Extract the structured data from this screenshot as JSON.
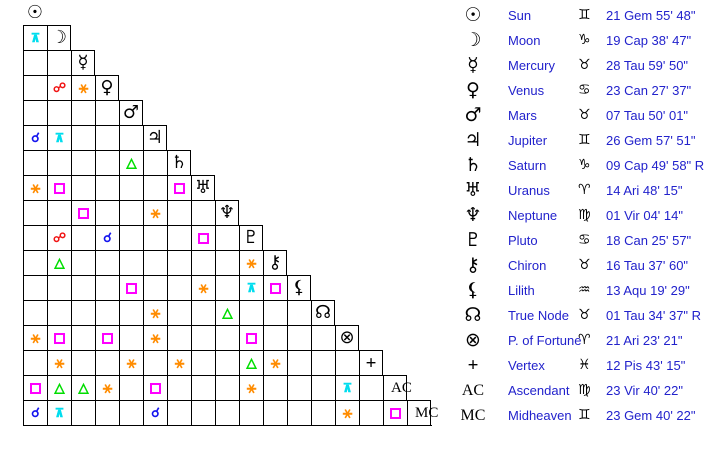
{
  "colors": {
    "background": "#FFFFFF",
    "grid_line": "#000000",
    "table_text_blue": "#2222CC",
    "symbol_black": "#000000"
  },
  "aspect_types": {
    "conjunction": {
      "symbol": "☌",
      "color": "#1111EE"
    },
    "opposition": {
      "symbol": "☍",
      "color": "#F01111"
    },
    "square": {
      "symbol": "□",
      "color": "#FF00FF"
    },
    "trine": {
      "symbol": "△",
      "color": "#00DD00"
    },
    "sextile": {
      "symbol": "⚹",
      "color": "#FF8C00"
    },
    "quincunx": {
      "symbol": "⊼",
      "color": "#00DDEE"
    }
  },
  "chart_data": {
    "type": "table",
    "planets": [
      {
        "name": "Sun",
        "symbol": "☉",
        "symbol_style": "astro",
        "sign": "Gem",
        "sign_symbol": "♊",
        "position": "21 Gem 55' 48\""
      },
      {
        "name": "Moon",
        "symbol": "☽",
        "symbol_style": "astro",
        "sign": "Cap",
        "sign_symbol": "♑",
        "position": "19 Cap 38' 47\""
      },
      {
        "name": "Mercury",
        "symbol": "☿",
        "symbol_style": "astro",
        "sign": "Tau",
        "sign_symbol": "♉",
        "position": "28 Tau 59' 50\""
      },
      {
        "name": "Venus",
        "symbol": "♀",
        "symbol_style": "astro",
        "sign": "Can",
        "sign_symbol": "♋",
        "position": "23 Can 27' 37\""
      },
      {
        "name": "Mars",
        "symbol": "♂",
        "symbol_style": "astro",
        "sign": "Tau",
        "sign_symbol": "♉",
        "position": "07 Tau 50' 01\""
      },
      {
        "name": "Jupiter",
        "symbol": "♃",
        "symbol_style": "astro",
        "sign": "Gem",
        "sign_symbol": "♊",
        "position": "26 Gem 57' 51\""
      },
      {
        "name": "Saturn",
        "symbol": "♄",
        "symbol_style": "astro",
        "sign": "Cap",
        "sign_symbol": "♑",
        "position": "09 Cap 49' 58\" R"
      },
      {
        "name": "Uranus",
        "symbol": "♅",
        "symbol_style": "astro",
        "sign": "Ari",
        "sign_symbol": "♈",
        "position": "14 Ari 48' 15\""
      },
      {
        "name": "Neptune",
        "symbol": "♆",
        "symbol_style": "astro",
        "sign": "Vir",
        "sign_symbol": "♍",
        "position": "01 Vir 04' 14\""
      },
      {
        "name": "Pluto",
        "symbol": "♇",
        "symbol_style": "astro",
        "sign": "Can",
        "sign_symbol": "♋",
        "position": "18 Can 25' 57\""
      },
      {
        "name": "Chiron",
        "symbol": "⚷",
        "symbol_style": "astro",
        "sign": "Tau",
        "sign_symbol": "♉",
        "position": "16 Tau 37' 60\""
      },
      {
        "name": "Lilith",
        "symbol": "⚸",
        "symbol_style": "astro",
        "sign": "Aqu",
        "sign_symbol": "♒",
        "position": "13 Aqu 19' 29\""
      },
      {
        "name": "True Node",
        "symbol": "☊",
        "symbol_style": "astro",
        "sign": "Tau",
        "sign_symbol": "♉",
        "position": "01 Tau 34' 37\" R"
      },
      {
        "name": "P. of Fortune",
        "symbol": "⊗",
        "symbol_style": "astro",
        "sign": "Ari",
        "sign_symbol": "♈",
        "position": "21 Ari 23' 21\""
      },
      {
        "name": "Vertex",
        "symbol": "+",
        "symbol_style": "cross",
        "sign": "Pis",
        "sign_symbol": "♓",
        "position": "12 Pis 43' 15\""
      },
      {
        "name": "Ascendant",
        "symbol": "AC",
        "symbol_style": "abbr",
        "sign": "Vir",
        "sign_symbol": "♍",
        "position": "23 Vir 40' 22\""
      },
      {
        "name": "Midheaven",
        "symbol": "MC",
        "symbol_style": "abbr",
        "sign": "Gem",
        "sign_symbol": "♊",
        "position": "23 Gem 40' 22\""
      }
    ],
    "aspects": [
      {
        "a": "Moon",
        "b": "Sun",
        "row": 2,
        "col": 1,
        "type": "quincunx"
      },
      {
        "a": "Venus",
        "b": "Moon",
        "row": 4,
        "col": 2,
        "type": "opposition"
      },
      {
        "a": "Venus",
        "b": "Mercury",
        "row": 4,
        "col": 3,
        "type": "sextile"
      },
      {
        "a": "Jupiter",
        "b": "Sun",
        "row": 6,
        "col": 1,
        "type": "conjunction"
      },
      {
        "a": "Jupiter",
        "b": "Moon",
        "row": 6,
        "col": 2,
        "type": "quincunx"
      },
      {
        "a": "Saturn",
        "b": "Mars",
        "row": 7,
        "col": 5,
        "type": "trine"
      },
      {
        "a": "Uranus",
        "b": "Sun",
        "row": 8,
        "col": 1,
        "type": "sextile"
      },
      {
        "a": "Uranus",
        "b": "Moon",
        "row": 8,
        "col": 2,
        "type": "square"
      },
      {
        "a": "Uranus",
        "b": "Saturn",
        "row": 8,
        "col": 7,
        "type": "square"
      },
      {
        "a": "Neptune",
        "b": "Mercury",
        "row": 9,
        "col": 3,
        "type": "square"
      },
      {
        "a": "Neptune",
        "b": "Jupiter",
        "row": 9,
        "col": 6,
        "type": "sextile"
      },
      {
        "a": "Pluto",
        "b": "Moon",
        "row": 10,
        "col": 2,
        "type": "opposition"
      },
      {
        "a": "Pluto",
        "b": "Venus",
        "row": 10,
        "col": 4,
        "type": "conjunction"
      },
      {
        "a": "Pluto",
        "b": "Uranus",
        "row": 10,
        "col": 8,
        "type": "square"
      },
      {
        "a": "Chiron",
        "b": "Moon",
        "row": 11,
        "col": 2,
        "type": "trine"
      },
      {
        "a": "Chiron",
        "b": "Pluto",
        "row": 11,
        "col": 10,
        "type": "sextile"
      },
      {
        "a": "Lilith",
        "b": "Mars",
        "row": 12,
        "col": 5,
        "type": "square"
      },
      {
        "a": "Lilith",
        "b": "Uranus",
        "row": 12,
        "col": 8,
        "type": "sextile"
      },
      {
        "a": "Lilith",
        "b": "Pluto",
        "row": 12,
        "col": 10,
        "type": "quincunx"
      },
      {
        "a": "Lilith",
        "b": "Chiron",
        "row": 12,
        "col": 11,
        "type": "square"
      },
      {
        "a": "True Node",
        "b": "Jupiter",
        "row": 13,
        "col": 6,
        "type": "sextile"
      },
      {
        "a": "True Node",
        "b": "Neptune",
        "row": 13,
        "col": 9,
        "type": "trine"
      },
      {
        "a": "P. of Fortune",
        "b": "Sun",
        "row": 14,
        "col": 1,
        "type": "sextile"
      },
      {
        "a": "P. of Fortune",
        "b": "Moon",
        "row": 14,
        "col": 2,
        "type": "square"
      },
      {
        "a": "P. of Fortune",
        "b": "Venus",
        "row": 14,
        "col": 4,
        "type": "square"
      },
      {
        "a": "P. of Fortune",
        "b": "Jupiter",
        "row": 14,
        "col": 6,
        "type": "sextile"
      },
      {
        "a": "P. of Fortune",
        "b": "Pluto",
        "row": 14,
        "col": 10,
        "type": "square"
      },
      {
        "a": "Vertex",
        "b": "Moon",
        "row": 15,
        "col": 2,
        "type": "sextile"
      },
      {
        "a": "Vertex",
        "b": "Mars",
        "row": 15,
        "col": 5,
        "type": "sextile"
      },
      {
        "a": "Vertex",
        "b": "Saturn",
        "row": 15,
        "col": 7,
        "type": "sextile"
      },
      {
        "a": "Vertex",
        "b": "Pluto",
        "row": 15,
        "col": 10,
        "type": "trine"
      },
      {
        "a": "Vertex",
        "b": "Chiron",
        "row": 15,
        "col": 11,
        "type": "sextile"
      },
      {
        "a": "Ascendant",
        "b": "Sun",
        "row": 16,
        "col": 1,
        "type": "square"
      },
      {
        "a": "Ascendant",
        "b": "Moon",
        "row": 16,
        "col": 2,
        "type": "trine"
      },
      {
        "a": "Ascendant",
        "b": "Mercury",
        "row": 16,
        "col": 3,
        "type": "trine"
      },
      {
        "a": "Ascendant",
        "b": "Venus",
        "row": 16,
        "col": 4,
        "type": "sextile"
      },
      {
        "a": "Ascendant",
        "b": "Jupiter",
        "row": 16,
        "col": 6,
        "type": "square"
      },
      {
        "a": "Ascendant",
        "b": "Pluto",
        "row": 16,
        "col": 10,
        "type": "sextile"
      },
      {
        "a": "Ascendant",
        "b": "P. of Fortune",
        "row": 16,
        "col": 14,
        "type": "quincunx"
      },
      {
        "a": "Midheaven",
        "b": "Sun",
        "row": 17,
        "col": 1,
        "type": "conjunction"
      },
      {
        "a": "Midheaven",
        "b": "Moon",
        "row": 17,
        "col": 2,
        "type": "quincunx"
      },
      {
        "a": "Midheaven",
        "b": "Jupiter",
        "row": 17,
        "col": 6,
        "type": "conjunction"
      },
      {
        "a": "Midheaven",
        "b": "P. of Fortune",
        "row": 17,
        "col": 14,
        "type": "sextile"
      },
      {
        "a": "Midheaven",
        "b": "Ascendant",
        "row": 17,
        "col": 16,
        "type": "square"
      }
    ]
  }
}
